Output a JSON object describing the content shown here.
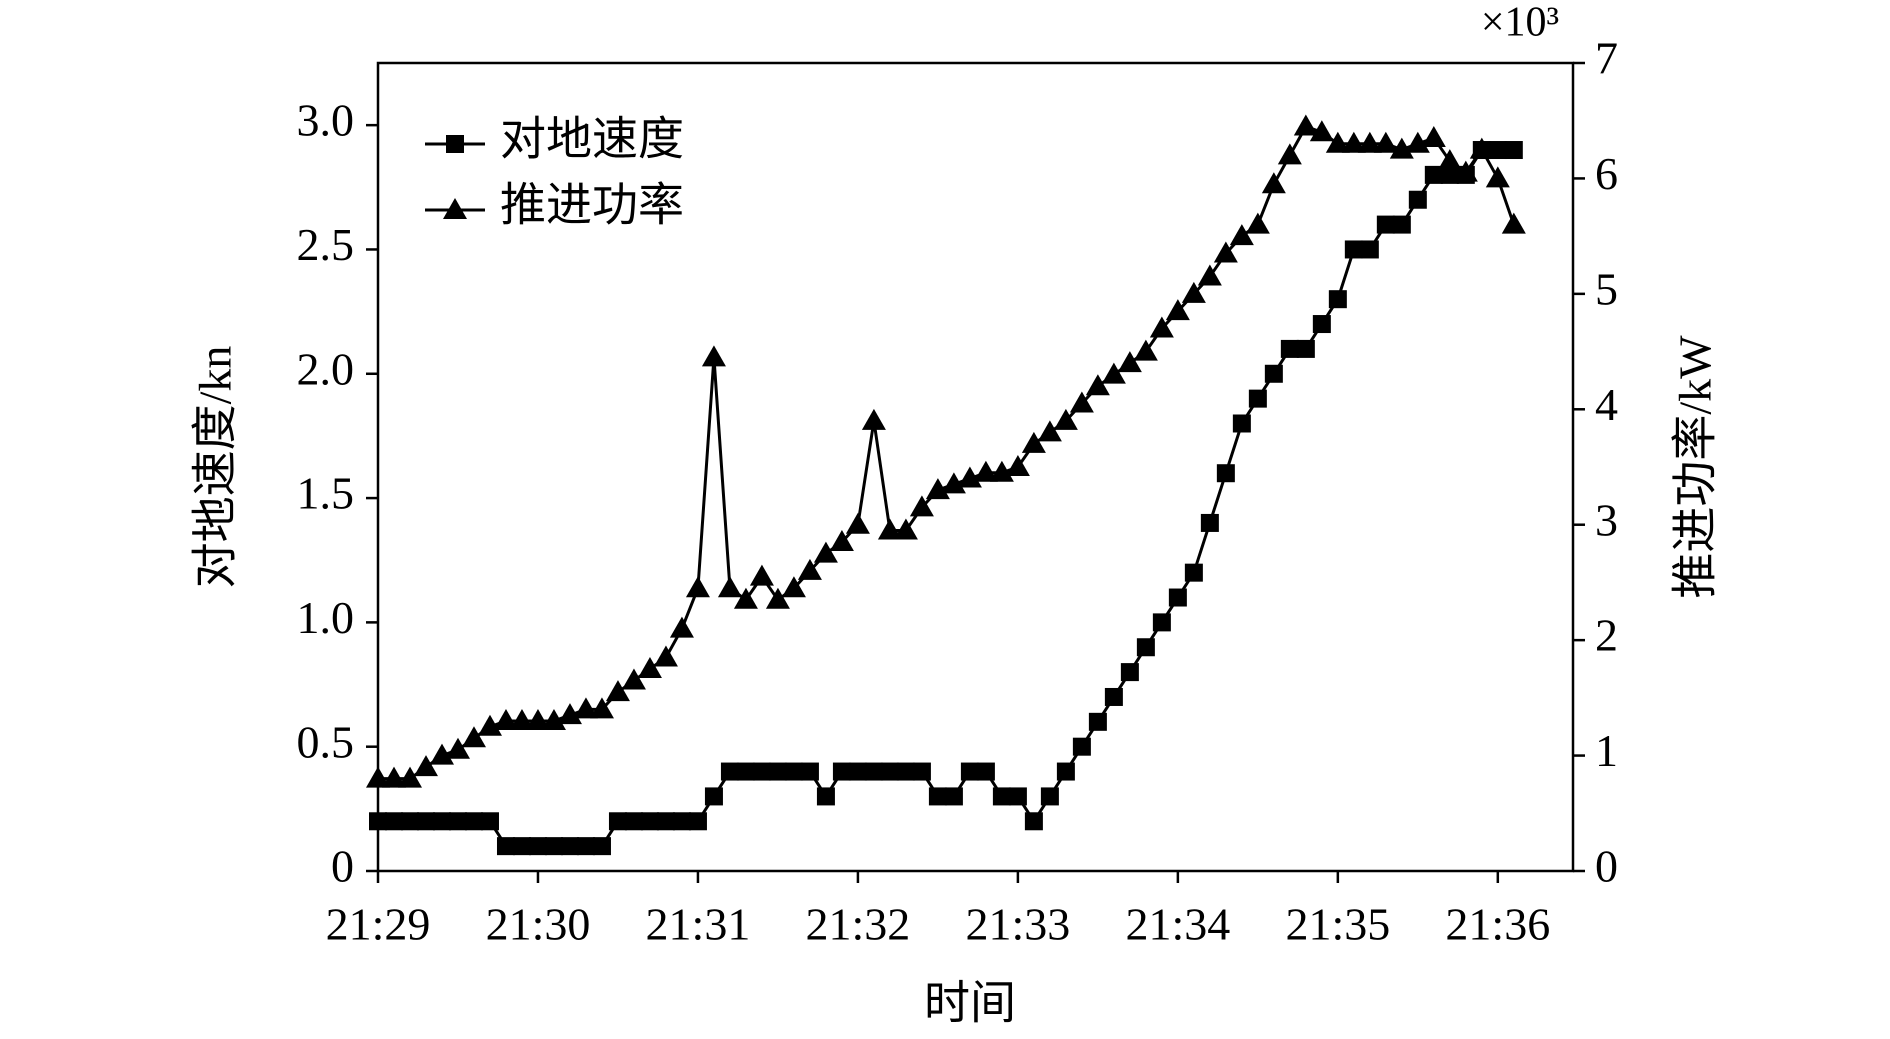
{
  "chart_data": {
    "type": "line",
    "x_label": "时间",
    "y_label": "对地速度/kn",
    "y2_label": "推进功率/kW",
    "y2_multiplier": "×10³",
    "x": [
      1289.0,
      1289.1,
      1289.2,
      1289.3,
      1289.4,
      1289.5,
      1289.6,
      1289.7,
      1289.8,
      1289.9,
      1290.0,
      1290.1,
      1290.2,
      1290.3,
      1290.4,
      1290.5,
      1290.6,
      1290.7,
      1290.8,
      1290.9,
      1291.0,
      1291.1,
      1291.2,
      1291.3,
      1291.4,
      1291.5,
      1291.6,
      1291.7,
      1291.8,
      1291.9,
      1292.0,
      1292.1,
      1292.2,
      1292.3,
      1292.4,
      1292.5,
      1292.6,
      1292.7,
      1292.8,
      1292.9,
      1293.0,
      1293.1,
      1293.2,
      1293.3,
      1293.4,
      1293.5,
      1293.6,
      1293.7,
      1293.8,
      1293.9,
      1294.0,
      1294.1,
      1294.2,
      1294.3,
      1294.4,
      1294.5,
      1294.6,
      1294.7,
      1294.8,
      1294.9,
      1295.0,
      1295.1,
      1295.2,
      1295.3,
      1295.4,
      1295.5,
      1295.6,
      1295.7,
      1295.8,
      1295.9,
      1296.0,
      1296.1
    ],
    "series": [
      {
        "name": "对地速度",
        "color": "#000000",
        "marker": "square",
        "values": [
          0.2,
          0.2,
          0.2,
          0.2,
          0.2,
          0.2,
          0.2,
          0.2,
          0.1,
          0.1,
          0.1,
          0.1,
          0.1,
          0.1,
          0.1,
          0.2,
          0.2,
          0.2,
          0.2,
          0.2,
          0.2,
          0.3,
          0.4,
          0.4,
          0.4,
          0.4,
          0.4,
          0.4,
          0.3,
          0.4,
          0.4,
          0.4,
          0.4,
          0.4,
          0.4,
          0.3,
          0.3,
          0.4,
          0.4,
          0.3,
          0.3,
          0.2,
          0.3,
          0.4,
          0.5,
          0.6,
          0.7,
          0.8,
          0.9,
          1.0,
          1.1,
          1.2,
          1.4,
          1.6,
          1.8,
          1.9,
          2.0,
          2.1,
          2.1,
          2.2,
          2.3,
          2.5,
          2.5,
          2.6,
          2.6,
          2.7,
          2.8,
          2.8,
          2.8,
          2.9,
          2.9,
          2.9
        ]
      },
      {
        "name": "推进功率",
        "color": "#000000",
        "marker": "triangle",
        "axis": "y2",
        "values": [
          0.8,
          0.8,
          0.8,
          0.9,
          1.0,
          1.05,
          1.15,
          1.25,
          1.3,
          1.3,
          1.3,
          1.3,
          1.35,
          1.4,
          1.4,
          1.55,
          1.65,
          1.75,
          1.85,
          2.1,
          2.45,
          4.45,
          2.45,
          2.35,
          2.55,
          2.35,
          2.45,
          2.6,
          2.75,
          2.85,
          3.0,
          3.9,
          2.95,
          2.95,
          3.15,
          3.3,
          3.35,
          3.4,
          3.45,
          3.45,
          3.5,
          3.7,
          3.8,
          3.9,
          4.05,
          4.2,
          4.3,
          4.4,
          4.5,
          4.7,
          4.85,
          5.0,
          5.15,
          5.35,
          5.5,
          5.6,
          5.95,
          6.2,
          6.45,
          6.4,
          6.3,
          6.3,
          6.3,
          6.3,
          6.25,
          6.3,
          6.35,
          6.15,
          6.05,
          6.25,
          6.0,
          5.6
        ]
      }
    ],
    "xlim": [
      1289,
      1296.47
    ],
    "xticks": [
      {
        "value": 1289,
        "label": "21:29"
      },
      {
        "value": 1290,
        "label": "21:30"
      },
      {
        "value": 1291,
        "label": "21:31"
      },
      {
        "value": 1292,
        "label": "21:32"
      },
      {
        "value": 1293,
        "label": "21:33"
      },
      {
        "value": 1294,
        "label": "21:34"
      },
      {
        "value": 1295,
        "label": "21:35"
      },
      {
        "value": 1296,
        "label": "21:36"
      }
    ],
    "ylim": [
      0,
      3.25
    ],
    "yticks": [
      0,
      0.5,
      {
        "value": 1,
        "label": "1.0"
      },
      1.5,
      {
        "value": 2,
        "label": "2.0"
      },
      2.5,
      {
        "value": 3,
        "label": "3.0"
      }
    ],
    "y2lim": [
      0,
      7
    ],
    "y2ticks": [
      0,
      1,
      2,
      3,
      4,
      5,
      6,
      7
    ],
    "legend": "upper left"
  }
}
